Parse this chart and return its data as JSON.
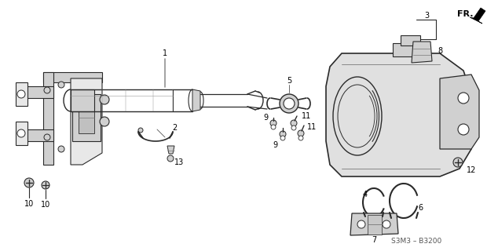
{
  "background_color": "#ffffff",
  "diagram_code": "S3M3 – B3200",
  "line_color": "#2a2a2a",
  "light_fill": "#e8e8e8",
  "mid_fill": "#d0d0d0",
  "dark_fill": "#b0b0b0"
}
